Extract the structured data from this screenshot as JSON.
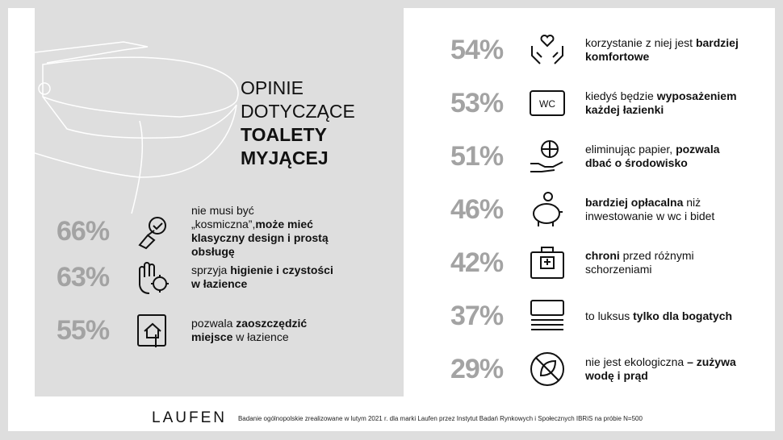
{
  "title": {
    "line1": "OPINIE",
    "line2": "DOTYCZĄCE",
    "line3": "TOALETY",
    "line4": "MYJĄCEJ"
  },
  "left_items": [
    {
      "pct": "66%",
      "icon": "hand-check-icon",
      "t1": "nie musi być „kosmiczna”,",
      "b1": "może mieć klasyczny design i prostą obsługę",
      "t2": ""
    },
    {
      "pct": "63%",
      "icon": "hand-virus-icon",
      "t1": "sprzyja ",
      "b1": "higienie i czystości w łazience",
      "t2": ""
    },
    {
      "pct": "55%",
      "icon": "tablet-home-icon",
      "t1": "pozwala ",
      "b1": "zaoszczędzić miejsce",
      "t2": " w łazience"
    }
  ],
  "right_items": [
    {
      "pct": "54%",
      "icon": "hands-heart-icon",
      "t1": "korzystanie z niej jest ",
      "b1": "bardziej komfortowe",
      "t2": ""
    },
    {
      "pct": "53%",
      "icon": "wc-sign-icon",
      "t1": "kiedyś będzie ",
      "b1": "wyposażeniem każdej łazienki",
      "t2": ""
    },
    {
      "pct": "51%",
      "icon": "hand-globe-icon",
      "t1": "eliminując papier, ",
      "b1": "pozwala dbać o środowisko",
      "t2": ""
    },
    {
      "pct": "46%",
      "icon": "piggy-bank-icon",
      "t1": "",
      "b1": "bardziej opłacalna",
      "t2": " niż inwestowanie w wc i bidet"
    },
    {
      "pct": "42%",
      "icon": "first-aid-kit-icon",
      "t1": "",
      "b1": "chroni",
      "t2": " przed różnymi schorzeniami"
    },
    {
      "pct": "37%",
      "icon": "money-stack-icon",
      "t1": "to luksus ",
      "b1": "tylko dla bogatych",
      "t2": ""
    },
    {
      "pct": "29%",
      "icon": "no-leaf-icon",
      "t1": "nie jest ekologiczna ",
      "b1": "– zużywa wodę i prąd",
      "t2": ""
    }
  ],
  "wc_label": "WC",
  "footer": {
    "logo": "LAUFEN",
    "note": "Badanie ogólnopolskie zrealizowane w lutym 2021 r. dla marki Laufen przez Instytut Badań Rynkowych i Społecznych IBRiS na próbie N=500"
  }
}
